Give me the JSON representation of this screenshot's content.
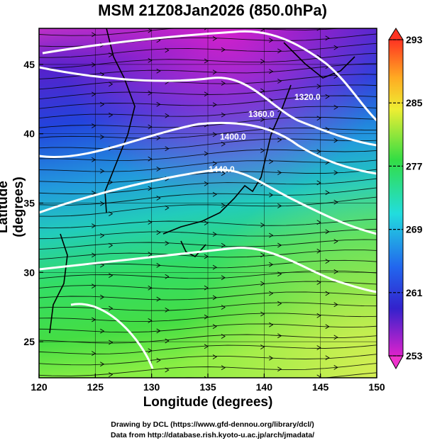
{
  "title": "MSM 21Z08Jan2026 (850.0hPa)",
  "xlabel": "Longitude (degrees)",
  "ylabel": "Latitude  (degrees)",
  "credit_line1": "Drawing by DCL (https://www.gfd-dennou.org/library/dcl/)",
  "credit_line2": "Data from http://database.rish.kyoto-u.ac.jp/arch/jmadata/",
  "x_ticks": [
    "120",
    "125",
    "130",
    "135",
    "140",
    "145",
    "150"
  ],
  "y_ticks": [
    "25",
    "30",
    "35",
    "40",
    "45"
  ],
  "colorbar_ticks": [
    "293",
    "285",
    "277",
    "269",
    "261",
    "253"
  ],
  "contour_labels": [
    "1320.0",
    "1360.0",
    "1400.0",
    "1440.0"
  ],
  "colors": {
    "cold": "#cc33cc",
    "mid_cold": "#2233dd",
    "mid": "#22bbcc",
    "warm": "#33dd55",
    "hot": "#ffee44",
    "max": "#ff3322"
  },
  "chart_data": {
    "type": "heatmap",
    "title": "MSM 21Z08Jan2026 (850.0hPa)",
    "xlabel": "Longitude (degrees)",
    "ylabel": "Latitude  (degrees)",
    "xlim": [
      120,
      150
    ],
    "ylim": [
      22.4,
      47.6
    ],
    "colorbar_range": [
      253,
      293
    ],
    "contour_levels": [
      1320,
      1360,
      1400,
      1440
    ]
  }
}
